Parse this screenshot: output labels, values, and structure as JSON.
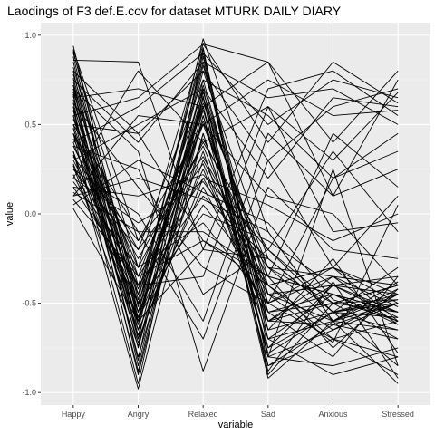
{
  "chart_data": {
    "type": "line",
    "title": "Laodings of F3 def.E.cov for dataset MTURK DAILY DIARY",
    "xlabel": "variable",
    "ylabel": "value",
    "categories": [
      "Happy",
      "Angry",
      "Relaxed",
      "Sad",
      "Anxious",
      "Stressed"
    ],
    "y_ticks": [
      "-1.0",
      "-0.5",
      "0.0",
      "0.5",
      "1.0"
    ],
    "ylim": [
      -1.07,
      1.07
    ],
    "grid": true,
    "legend": "none",
    "colors": {
      "panel_background": "#ebebeb",
      "grid_major": "#ffffff",
      "grid_minor": "#f5f5f5",
      "line": "#000000",
      "tick_text": "#4d4d4d"
    },
    "series": [
      {
        "values": [
          0.94,
          -0.52,
          0.98,
          -0.1,
          -0.6,
          -0.45
        ]
      },
      {
        "values": [
          0.91,
          -0.48,
          0.93,
          -0.85,
          -0.62,
          -0.7
        ]
      },
      {
        "values": [
          0.88,
          -0.55,
          0.85,
          -0.6,
          -0.35,
          -0.4
        ]
      },
      {
        "values": [
          0.85,
          -0.6,
          0.8,
          -0.25,
          -0.55,
          -0.5
        ]
      },
      {
        "values": [
          0.82,
          -0.45,
          0.9,
          -0.7,
          -0.45,
          -0.6
        ]
      },
      {
        "values": [
          0.8,
          -0.7,
          0.75,
          -0.55,
          -0.8,
          -0.35
        ]
      },
      {
        "values": [
          0.78,
          -0.4,
          0.7,
          -0.9,
          -0.5,
          -0.55
        ]
      },
      {
        "values": [
          0.76,
          -0.58,
          0.68,
          -0.4,
          -0.7,
          -0.8
        ]
      },
      {
        "values": [
          0.74,
          -0.65,
          0.88,
          -0.75,
          -0.4,
          -0.45
        ]
      },
      {
        "values": [
          0.72,
          -0.5,
          0.62,
          -0.3,
          -0.6,
          -0.65
        ]
      },
      {
        "values": [
          0.7,
          -0.75,
          0.55,
          -0.65,
          -0.55,
          -0.3
        ]
      },
      {
        "values": [
          0.68,
          -0.35,
          0.6,
          -0.8,
          -0.65,
          -0.5
        ]
      },
      {
        "values": [
          0.66,
          -0.62,
          0.72,
          -0.5,
          -0.3,
          -0.6
        ]
      },
      {
        "values": [
          0.64,
          -0.55,
          0.65,
          -0.35,
          -0.75,
          -0.42
        ]
      },
      {
        "values": [
          0.62,
          -0.68,
          0.58,
          -0.6,
          -0.5,
          -0.7
        ]
      },
      {
        "values": [
          0.6,
          -0.42,
          0.5,
          -0.45,
          -0.4,
          -0.55
        ]
      },
      {
        "values": [
          0.58,
          -0.8,
          0.45,
          -0.7,
          -0.6,
          -0.38
        ]
      },
      {
        "values": [
          0.55,
          -0.5,
          0.52,
          -0.55,
          -0.45,
          -0.62
        ]
      },
      {
        "values": [
          0.53,
          -0.3,
          0.4,
          -0.2,
          -0.5,
          -0.48
        ]
      },
      {
        "values": [
          0.5,
          -0.6,
          0.35,
          -0.75,
          -0.55,
          -0.58
        ]
      },
      {
        "values": [
          0.48,
          -0.72,
          0.3,
          -0.4,
          -0.65,
          -0.45
        ]
      },
      {
        "values": [
          0.45,
          -0.45,
          0.42,
          -0.3,
          -0.35,
          -0.52
        ]
      },
      {
        "values": [
          0.42,
          -0.25,
          0.38,
          -0.5,
          -0.7,
          -0.6
        ]
      },
      {
        "values": [
          0.4,
          -0.55,
          0.25,
          -0.6,
          -0.4,
          -0.35
        ]
      },
      {
        "values": [
          0.38,
          -0.35,
          0.2,
          -0.45,
          -0.6,
          -0.5
        ]
      },
      {
        "values": [
          0.35,
          -0.65,
          0.15,
          -0.55,
          -0.5,
          -0.4
        ]
      },
      {
        "values": [
          0.32,
          -0.15,
          0.32,
          -0.35,
          -0.45,
          -0.55
        ]
      },
      {
        "values": [
          0.3,
          -0.4,
          0.1,
          -0.25,
          -0.55,
          -0.65
        ]
      },
      {
        "values": [
          0.28,
          -0.58,
          0.05,
          -0.4,
          -0.3,
          -0.45
        ]
      },
      {
        "values": [
          0.25,
          -0.2,
          0.28,
          -0.6,
          -0.62,
          -0.5
        ]
      },
      {
        "values": [
          0.22,
          -0.5,
          0.0,
          -0.15,
          -0.4,
          -0.58
        ]
      },
      {
        "values": [
          0.2,
          -0.05,
          0.18,
          -0.3,
          -0.5,
          -0.4
        ]
      },
      {
        "values": [
          0.18,
          -0.3,
          -0.05,
          -0.5,
          -0.35,
          -0.62
        ]
      },
      {
        "values": [
          0.15,
          0.1,
          0.22,
          -0.2,
          -0.55,
          -0.48
        ]
      },
      {
        "values": [
          0.12,
          -0.1,
          -0.1,
          -0.35,
          -0.45,
          -0.55
        ]
      },
      {
        "values": [
          0.1,
          0.2,
          0.08,
          -0.1,
          -0.6,
          -0.42
        ]
      },
      {
        "values": [
          0.08,
          -0.35,
          -0.15,
          -0.4,
          -0.3,
          -0.5
        ]
      },
      {
        "values": [
          0.05,
          0.3,
          0.12,
          -0.05,
          -0.48,
          -0.6
        ]
      },
      {
        "values": [
          0.03,
          -0.6,
          -0.2,
          -0.25,
          -0.55,
          -0.45
        ]
      },
      {
        "values": [
          0.6,
          -0.9,
          0.55,
          -0.85,
          -0.7,
          -0.9
        ]
      },
      {
        "values": [
          0.45,
          -0.95,
          0.7,
          -0.8,
          -0.85,
          -0.75
        ]
      },
      {
        "values": [
          0.72,
          -0.85,
          0.65,
          -0.92,
          -0.6,
          -0.95
        ]
      },
      {
        "values": [
          0.35,
          -0.98,
          0.45,
          -0.7,
          -0.9,
          -0.8
        ]
      },
      {
        "values": [
          0.55,
          -0.88,
          0.6,
          -0.78,
          -0.55,
          -0.85
        ]
      },
      {
        "values": [
          0.9,
          -0.3,
          0.95,
          0.85,
          0.1,
          0.75
        ]
      },
      {
        "values": [
          0.86,
          0.85,
          -0.2,
          0.7,
          0.8,
          0.55
        ]
      },
      {
        "values": [
          0.4,
          0.6,
          0.9,
          0.5,
          0.75,
          0.65
        ]
      },
      {
        "values": [
          0.5,
          0.45,
          0.8,
          0.3,
          0.6,
          0.7
        ]
      },
      {
        "values": [
          0.65,
          0.7,
          0.6,
          0.85,
          0.4,
          0.8
        ]
      },
      {
        "values": [
          0.3,
          0.5,
          0.7,
          0.2,
          0.65,
          0.6
        ]
      },
      {
        "values": [
          0.2,
          0.8,
          0.4,
          0.6,
          0.3,
          0.68
        ]
      },
      {
        "values": [
          0.75,
          0.4,
          0.85,
          0.65,
          0.7,
          0.5
        ]
      },
      {
        "values": [
          0.55,
          0.65,
          0.95,
          0.4,
          0.85,
          0.62
        ]
      },
      {
        "values": [
          0.1,
          0.55,
          0.5,
          0.75,
          0.55,
          0.58
        ]
      },
      {
        "values": [
          0.45,
          -0.2,
          0.75,
          0.55,
          0.2,
          0.45
        ]
      },
      {
        "values": [
          0.62,
          0.15,
          -0.3,
          -0.5,
          0.2,
          0.35
        ]
      },
      {
        "values": [
          0.38,
          0.25,
          -0.45,
          -0.2,
          0.35,
          -0.1
        ]
      },
      {
        "values": [
          0.5,
          -0.1,
          -0.7,
          0.3,
          -0.3,
          0.1
        ]
      },
      {
        "values": [
          0.7,
          0.35,
          -0.88,
          0.15,
          -0.2,
          -0.25
        ]
      },
      {
        "values": [
          0.25,
          0.0,
          -0.6,
          0.45,
          0.1,
          0.25
        ]
      },
      {
        "values": [
          0.15,
          -0.4,
          -0.35,
          0.6,
          -0.1,
          -0.05
        ]
      },
      {
        "values": [
          0.8,
          0.45,
          -0.15,
          -0.35,
          0.45,
          0.15
        ]
      },
      {
        "values": [
          0.92,
          -0.15,
          0.5,
          0.1,
          0.0,
          -0.4
        ]
      },
      {
        "values": [
          0.58,
          -0.7,
          0.2,
          0.05,
          -0.15,
          0.0
        ]
      },
      {
        "values": [
          0.33,
          -0.5,
          0.6,
          -0.8,
          0.25,
          -0.85
        ]
      },
      {
        "values": [
          0.67,
          -0.82,
          0.92,
          -0.65,
          -0.25,
          -0.78
        ]
      },
      {
        "values": [
          0.48,
          -0.62,
          0.83,
          -0.45,
          -0.72,
          0.05
        ]
      },
      {
        "values": [
          0.27,
          -0.74,
          0.66,
          -0.88,
          -0.38,
          -0.92
        ]
      }
    ]
  }
}
